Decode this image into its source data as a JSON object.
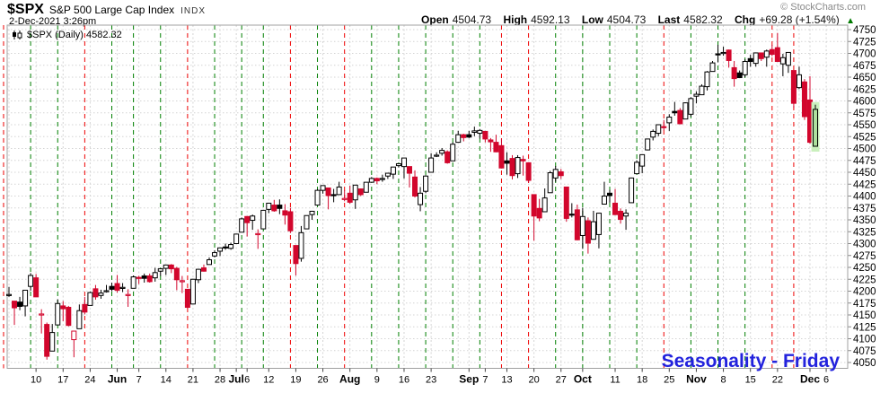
{
  "header": {
    "symbol": "$SPX",
    "name": "S&P 500 Large Cap Index",
    "exchange": "INDX",
    "datetime": "2-Dec-2021 3:26pm",
    "copyright": "© StockCharts.com",
    "quote": {
      "open_label": "Open",
      "open": "4504.73",
      "high_label": "High",
      "high": "4592.13",
      "low_label": "Low",
      "low": "4504.73",
      "last_label": "Last",
      "last": "4582.32",
      "chg_label": "Chg",
      "chg": "+69.28 (+1.54%)",
      "direction": "up",
      "arrow": "▲"
    }
  },
  "legend": {
    "icon": "candlestick-chart-icon",
    "text": "$SPX (Daily) 4582.32"
  },
  "watermark": "Seasonality - Friday",
  "colors": {
    "candle_down": "#d2062c",
    "candle_up_outline": "#000000",
    "friday_up_line": "#007f00",
    "friday_down_line": "#ee0000",
    "week_gridline": "#d4d4d4",
    "price_gridline": "#d4d4d4",
    "plot_border": "#a0a0a0",
    "highlight_halo": "#caf0bd",
    "highlight_body": "#aee09e",
    "watermark_blue": "#2222dd",
    "copyright_gray": "#8a8a8a"
  },
  "chart_data": {
    "type": "candlestick",
    "symbol": "$SPX",
    "timeframe": "Daily",
    "last_value": 4582.32,
    "y_axis": {
      "min": 4050,
      "max": 4750,
      "step": 25
    },
    "x_ticks": [
      {
        "i": 5,
        "label": "10"
      },
      {
        "i": 10,
        "label": "17"
      },
      {
        "i": 15,
        "label": "24"
      },
      {
        "i": 20,
        "label": "Jun",
        "bold": true
      },
      {
        "i": 24,
        "label": "7"
      },
      {
        "i": 29,
        "label": "14"
      },
      {
        "i": 34,
        "label": "21"
      },
      {
        "i": 39,
        "label": "28"
      },
      {
        "i": 42,
        "label": "Jul",
        "bold": true
      },
      {
        "i": 44,
        "label": "6"
      },
      {
        "i": 48,
        "label": "12"
      },
      {
        "i": 53,
        "label": "19"
      },
      {
        "i": 58,
        "label": "26"
      },
      {
        "i": 63,
        "label": "Aug",
        "bold": true
      },
      {
        "i": 68,
        "label": "9"
      },
      {
        "i": 73,
        "label": "16"
      },
      {
        "i": 78,
        "label": "23"
      },
      {
        "i": 85,
        "label": "Sep",
        "bold": true
      },
      {
        "i": 88,
        "label": "7"
      },
      {
        "i": 92,
        "label": "13"
      },
      {
        "i": 97,
        "label": "20"
      },
      {
        "i": 102,
        "label": "27"
      },
      {
        "i": 106,
        "label": "Oct",
        "bold": true
      },
      {
        "i": 112,
        "label": "11"
      },
      {
        "i": 117,
        "label": "18"
      },
      {
        "i": 122,
        "label": "25"
      },
      {
        "i": 127,
        "label": "Nov",
        "bold": true
      },
      {
        "i": 132,
        "label": "8"
      },
      {
        "i": 137,
        "label": "15"
      },
      {
        "i": 142,
        "label": "22"
      },
      {
        "i": 148,
        "label": "Dec",
        "bold": true
      },
      {
        "i": 151,
        "label": "6"
      }
    ],
    "week_start_indices": [
      0,
      5,
      10,
      15,
      20,
      24,
      29,
      34,
      39,
      42,
      44,
      48,
      53,
      58,
      63,
      68,
      73,
      78,
      83,
      85,
      88,
      92,
      97,
      102,
      106,
      112,
      117,
      122,
      127,
      132,
      137,
      142,
      146,
      148,
      151
    ],
    "friday_lines": [
      {
        "i": -1,
        "color": "red"
      },
      {
        "i": 4,
        "color": "green"
      },
      {
        "i": 9,
        "color": "green"
      },
      {
        "i": 14,
        "color": "red"
      },
      {
        "i": 19,
        "color": "green"
      },
      {
        "i": 23,
        "color": "green"
      },
      {
        "i": 28,
        "color": "green"
      },
      {
        "i": 33,
        "color": "red"
      },
      {
        "i": 38,
        "color": "green"
      },
      {
        "i": 43,
        "color": "green"
      },
      {
        "i": 47,
        "color": "green"
      },
      {
        "i": 52,
        "color": "red"
      },
      {
        "i": 57,
        "color": "green"
      },
      {
        "i": 62,
        "color": "red"
      },
      {
        "i": 67,
        "color": "green"
      },
      {
        "i": 72,
        "color": "green"
      },
      {
        "i": 77,
        "color": "green"
      },
      {
        "i": 82,
        "color": "green"
      },
      {
        "i": 87,
        "color": "green"
      },
      {
        "i": 91,
        "color": "red"
      },
      {
        "i": 96,
        "color": "red"
      },
      {
        "i": 101,
        "color": "green"
      },
      {
        "i": 106,
        "color": "green"
      },
      {
        "i": 111,
        "color": "green"
      },
      {
        "i": 116,
        "color": "green"
      },
      {
        "i": 121,
        "color": "red"
      },
      {
        "i": 126,
        "color": "green"
      },
      {
        "i": 131,
        "color": "green"
      },
      {
        "i": 136,
        "color": "green"
      },
      {
        "i": 141,
        "color": "red"
      },
      {
        "i": 145,
        "color": "red"
      }
    ],
    "highlight_last": true,
    "candles": [
      [
        4192,
        4209,
        4188,
        4193
      ],
      [
        4179,
        4179,
        4129,
        4165
      ],
      [
        4177,
        4188,
        4160,
        4168
      ],
      [
        4169,
        4202,
        4147,
        4202
      ],
      [
        4210,
        4238,
        4201,
        4233
      ],
      [
        4228,
        4236,
        4188,
        4188
      ],
      [
        4150,
        4162,
        4111,
        4152
      ],
      [
        4130,
        4134,
        4056,
        4063
      ],
      [
        4074,
        4131,
        4074,
        4113
      ],
      [
        4129,
        4183,
        4129,
        4174
      ],
      [
        4169,
        4179,
        4137,
        4163
      ],
      [
        4166,
        4169,
        4126,
        4128
      ],
      [
        4098,
        4116,
        4061,
        4116
      ],
      [
        4121,
        4172,
        4121,
        4159
      ],
      [
        4172,
        4188,
        4151,
        4156
      ],
      [
        4170,
        4199,
        4170,
        4197
      ],
      [
        4205,
        4213,
        4182,
        4188
      ],
      [
        4191,
        4203,
        4184,
        4196
      ],
      [
        4201,
        4213,
        4197,
        4201
      ],
      [
        4210,
        4218,
        4200,
        4204
      ],
      [
        4216,
        4234,
        4197,
        4202
      ],
      [
        4207,
        4217,
        4198,
        4208
      ],
      [
        4191,
        4204,
        4167,
        4193
      ],
      [
        4206,
        4233,
        4206,
        4230
      ],
      [
        4229,
        4232,
        4215,
        4227
      ],
      [
        4232,
        4237,
        4218,
        4227
      ],
      [
        4232,
        4237,
        4218,
        4220
      ],
      [
        4228,
        4249,
        4220,
        4239
      ],
      [
        4242,
        4248,
        4232,
        4247
      ],
      [
        4248,
        4255,
        4234,
        4255
      ],
      [
        4255,
        4257,
        4238,
        4247
      ],
      [
        4248,
        4251,
        4202,
        4224
      ],
      [
        4221,
        4232,
        4196,
        4222
      ],
      [
        4204,
        4204,
        4164,
        4166
      ],
      [
        4173,
        4226,
        4173,
        4225
      ],
      [
        4224,
        4247,
        4217,
        4246
      ],
      [
        4249,
        4256,
        4241,
        4242
      ],
      [
        4256,
        4271,
        4256,
        4266
      ],
      [
        4274,
        4286,
        4271,
        4281
      ],
      [
        4284,
        4292,
        4274,
        4291
      ],
      [
        4293,
        4300,
        4287,
        4292
      ],
      [
        4290,
        4302,
        4287,
        4298
      ],
      [
        4300,
        4321,
        4300,
        4320
      ],
      [
        4324,
        4355,
        4324,
        4352
      ],
      [
        4357,
        4357,
        4315,
        4344
      ],
      [
        4349,
        4361,
        4329,
        4358
      ],
      [
        4321,
        4330,
        4289,
        4321
      ],
      [
        4331,
        4371,
        4331,
        4370
      ],
      [
        4372,
        4386,
        4364,
        4385
      ],
      [
        4381,
        4392,
        4367,
        4369
      ],
      [
        4381,
        4393,
        4362,
        4374
      ],
      [
        4369,
        4383,
        4340,
        4360
      ],
      [
        4367,
        4375,
        4322,
        4327
      ],
      [
        4296,
        4296,
        4233,
        4258
      ],
      [
        4269,
        4337,
        4262,
        4323
      ],
      [
        4331,
        4359,
        4331,
        4359
      ],
      [
        4361,
        4369,
        4350,
        4368
      ],
      [
        4381,
        4415,
        4381,
        4412
      ],
      [
        4412,
        4422,
        4405,
        4422
      ],
      [
        4417,
        4417,
        4372,
        4401
      ],
      [
        4403,
        4415,
        4387,
        4401
      ],
      [
        4403,
        4430,
        4403,
        4419
      ],
      [
        4395,
        4412,
        4389,
        4395
      ],
      [
        4406,
        4422,
        4384,
        4387
      ],
      [
        4392,
        4423,
        4373,
        4423
      ],
      [
        4415,
        4416,
        4400,
        4403
      ],
      [
        4408,
        4429,
        4408,
        4429
      ],
      [
        4429,
        4440,
        4429,
        4437
      ],
      [
        4437,
        4439,
        4425,
        4432
      ],
      [
        4436,
        4445,
        4430,
        4437
      ],
      [
        4442,
        4449,
        4436,
        4448
      ],
      [
        4446,
        4461,
        4436,
        4461
      ],
      [
        4464,
        4468,
        4460,
        4468
      ],
      [
        4462,
        4480,
        4437,
        4480
      ],
      [
        4462,
        4462,
        4418,
        4448
      ],
      [
        4440,
        4454,
        4397,
        4400
      ],
      [
        4382,
        4419,
        4368,
        4406
      ],
      [
        4410,
        4444,
        4406,
        4442
      ],
      [
        4450,
        4490,
        4450,
        4480
      ],
      [
        4484,
        4492,
        4482,
        4486
      ],
      [
        4490,
        4501,
        4485,
        4496
      ],
      [
        4493,
        4496,
        4468,
        4470
      ],
      [
        4474,
        4513,
        4474,
        4509
      ],
      [
        4513,
        4537,
        4513,
        4529
      ],
      [
        4529,
        4531,
        4515,
        4523
      ],
      [
        4529,
        4537,
        4522,
        4524
      ],
      [
        4534,
        4546,
        4526,
        4537
      ],
      [
        4532,
        4541,
        4521,
        4538
      ],
      [
        4536,
        4536,
        4513,
        4520
      ],
      [
        4518,
        4522,
        4493,
        4514
      ],
      [
        4513,
        4529,
        4492,
        4493
      ],
      [
        4506,
        4520,
        4458,
        4459
      ],
      [
        4474,
        4492,
        4445,
        4469
      ],
      [
        4479,
        4486,
        4435,
        4443
      ],
      [
        4447,
        4486,
        4438,
        4481
      ],
      [
        4477,
        4485,
        4443,
        4474
      ],
      [
        4470,
        4471,
        4428,
        4433
      ],
      [
        4403,
        4403,
        4306,
        4358
      ],
      [
        4374,
        4394,
        4347,
        4354
      ],
      [
        4367,
        4416,
        4367,
        4396
      ],
      [
        4407,
        4453,
        4407,
        4449
      ],
      [
        4438,
        4463,
        4430,
        4456
      ],
      [
        4451,
        4457,
        4436,
        4443
      ],
      [
        4419,
        4419,
        4346,
        4353
      ],
      [
        4362,
        4385,
        4355,
        4360
      ],
      [
        4371,
        4382,
        4307,
        4308
      ],
      [
        4317,
        4375,
        4289,
        4357
      ],
      [
        4348,
        4355,
        4279,
        4301
      ],
      [
        4309,
        4369,
        4309,
        4346
      ],
      [
        4319,
        4365,
        4290,
        4364
      ],
      [
        4383,
        4430,
        4383,
        4400
      ],
      [
        4406,
        4413,
        4386,
        4401
      ],
      [
        4385,
        4415,
        4360,
        4361
      ],
      [
        4368,
        4374,
        4342,
        4351
      ],
      [
        4358,
        4372,
        4329,
        4364
      ],
      [
        4386,
        4439,
        4386,
        4438
      ],
      [
        4447,
        4475,
        4447,
        4471
      ],
      [
        4463,
        4488,
        4448,
        4487
      ],
      [
        4497,
        4520,
        4496,
        4520
      ],
      [
        4524,
        4540,
        4517,
        4536
      ],
      [
        4532,
        4551,
        4526,
        4550
      ],
      [
        4546,
        4560,
        4538,
        4545
      ],
      [
        4554,
        4572,
        4537,
        4566
      ],
      [
        4578,
        4598,
        4569,
        4575
      ],
      [
        4580,
        4585,
        4551,
        4552
      ],
      [
        4562,
        4597,
        4562,
        4596
      ],
      [
        4572,
        4608,
        4567,
        4605
      ],
      [
        4610,
        4620,
        4595,
        4614
      ],
      [
        4613,
        4635,
        4613,
        4631
      ],
      [
        4630,
        4663,
        4622,
        4661
      ],
      [
        4662,
        4684,
        4662,
        4680
      ],
      [
        4699,
        4718,
        4681,
        4698
      ],
      [
        4701,
        4714,
        4695,
        4702
      ],
      [
        4707,
        4708,
        4670,
        4685
      ],
      [
        4670,
        4684,
        4630,
        4647
      ],
      [
        4659,
        4664,
        4648,
        4649
      ],
      [
        4655,
        4688,
        4650,
        4683
      ],
      [
        4689,
        4697,
        4672,
        4683
      ],
      [
        4679,
        4702,
        4672,
        4701
      ],
      [
        4701,
        4701,
        4684,
        4689
      ],
      [
        4692,
        4708,
        4672,
        4705
      ],
      [
        4708,
        4718,
        4694,
        4698
      ],
      [
        4712,
        4743,
        4682,
        4683
      ],
      [
        4678,
        4699,
        4652,
        4691
      ],
      [
        4675,
        4702,
        4659,
        4702
      ],
      [
        4664,
        4664,
        4585,
        4595
      ],
      [
        4628,
        4672,
        4625,
        4655
      ],
      [
        4640,
        4646,
        4560,
        4567
      ],
      [
        4602,
        4652,
        4510,
        4513
      ],
      [
        4504.73,
        4592.13,
        4504.73,
        4582.32
      ]
    ]
  }
}
